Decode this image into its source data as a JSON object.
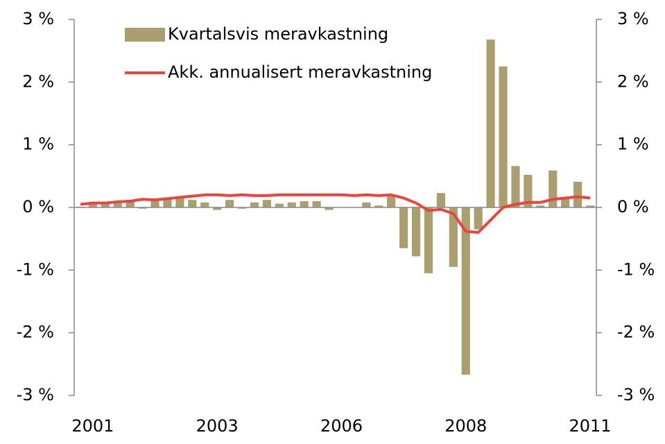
{
  "chart_data": {
    "type": "bar_line",
    "categories": [
      null,
      "2001",
      null,
      null,
      null,
      null,
      null,
      null,
      null,
      null,
      null,
      "2003",
      null,
      null,
      null,
      null,
      null,
      null,
      null,
      null,
      null,
      "2006",
      null,
      null,
      null,
      null,
      null,
      null,
      null,
      null,
      null,
      "2008",
      null,
      null,
      null,
      null,
      null,
      null,
      null,
      null,
      null,
      "2011"
    ],
    "series": [
      {
        "name": "Kvartalsvis meravkastning",
        "type": "bar",
        "color": "#ab9f70",
        "values": [
          0.01,
          0.05,
          0.06,
          0.1,
          0.12,
          -0.02,
          0.12,
          0.15,
          0.18,
          0.12,
          0.08,
          -0.04,
          0.12,
          -0.02,
          0.08,
          0.12,
          0.06,
          0.08,
          0.1,
          0.1,
          -0.04,
          0.0,
          0.0,
          0.08,
          0.03,
          0.2,
          -0.65,
          -0.78,
          -1.05,
          0.23,
          -0.95,
          -2.67,
          -0.35,
          2.68,
          2.25,
          0.66,
          0.52,
          0.03,
          0.59,
          0.15,
          0.41,
          0.03
        ]
      },
      {
        "name": "Akk. annualisert meravkastning",
        "type": "line",
        "color": "#f0413a",
        "axis": "y2",
        "values": [
          0.05,
          0.07,
          0.07,
          0.09,
          0.1,
          0.13,
          0.12,
          0.14,
          0.16,
          0.18,
          0.2,
          0.2,
          0.19,
          0.2,
          0.19,
          0.19,
          0.2,
          0.2,
          0.2,
          0.2,
          0.2,
          0.2,
          0.19,
          0.2,
          0.19,
          0.2,
          0.15,
          0.07,
          -0.05,
          -0.03,
          -0.1,
          -0.38,
          -0.4,
          -0.2,
          0.0,
          0.05,
          0.08,
          0.08,
          0.13,
          0.15,
          0.17,
          0.15
        ]
      }
    ],
    "ylim": [
      -3,
      3
    ],
    "yticks": [
      {
        "value": -3,
        "label": "-3 %"
      },
      {
        "value": -2,
        "label": "-2 %"
      },
      {
        "value": -1,
        "label": "-1 %"
      },
      {
        "value": 0,
        "label": "0 %"
      },
      {
        "value": 1,
        "label": "1 %"
      },
      {
        "value": 2,
        "label": "2 %"
      },
      {
        "value": 3,
        "label": "3 %"
      }
    ],
    "y2lim": [
      -3,
      3
    ],
    "y2ticks": [
      {
        "value": -3,
        "label": "-3 %"
      },
      {
        "value": -2,
        "label": "-2 %"
      },
      {
        "value": -1,
        "label": "-1 %"
      },
      {
        "value": 0,
        "label": "0 %"
      },
      {
        "value": 1,
        "label": "1 %"
      },
      {
        "value": 2,
        "label": "2 %"
      },
      {
        "value": 3,
        "label": "3 %"
      }
    ],
    "legend": "upper left"
  }
}
